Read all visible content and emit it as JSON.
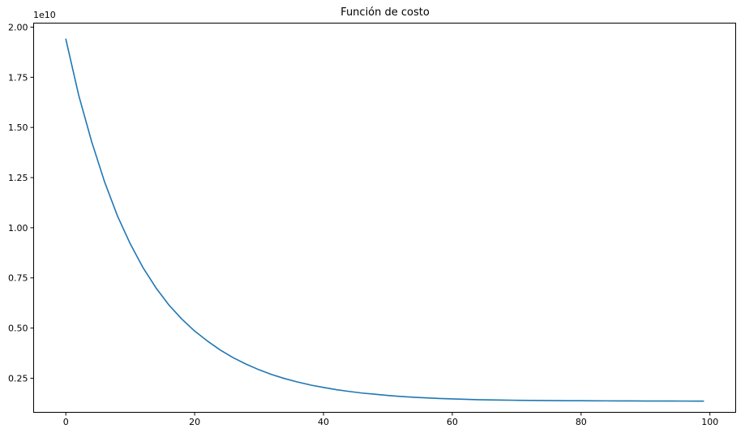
{
  "chart_data": {
    "type": "line",
    "title": "Función de costo",
    "xlabel": "",
    "ylabel": "",
    "offset_label": "1e10",
    "grid": false,
    "xlim": [
      -5,
      104
    ],
    "ylim": [
      0.08,
      2.02
    ],
    "x_ticks": [
      0,
      20,
      40,
      60,
      80,
      100
    ],
    "x_tick_labels": [
      "0",
      "20",
      "40",
      "60",
      "80",
      "100"
    ],
    "y_ticks": [
      0.25,
      0.5,
      0.75,
      1.0,
      1.25,
      1.5,
      1.75,
      2.0
    ],
    "y_tick_labels": [
      "0.25",
      "0.50",
      "0.75",
      "1.00",
      "1.25",
      "1.50",
      "1.75",
      "2.00"
    ],
    "series": [
      {
        "color": "#1f77b4",
        "x": [
          0,
          2,
          4,
          6,
          8,
          10,
          12,
          14,
          16,
          18,
          20,
          22,
          24,
          26,
          28,
          30,
          32,
          34,
          36,
          38,
          40,
          42,
          44,
          46,
          48,
          50,
          52,
          54,
          56,
          58,
          60,
          62,
          64,
          66,
          68,
          70,
          72,
          74,
          76,
          78,
          80,
          82,
          84,
          86,
          88,
          90,
          92,
          94,
          96,
          98,
          99
        ],
        "values": [
          1.94,
          1.66,
          1.43,
          1.23,
          1.06,
          0.92,
          0.8,
          0.7,
          0.615,
          0.545,
          0.485,
          0.435,
          0.39,
          0.352,
          0.32,
          0.292,
          0.268,
          0.248,
          0.231,
          0.216,
          0.204,
          0.193,
          0.184,
          0.176,
          0.17,
          0.164,
          0.159,
          0.155,
          0.152,
          0.149,
          0.147,
          0.145,
          0.143,
          0.142,
          0.141,
          0.14,
          0.1395,
          0.139,
          0.1385,
          0.138,
          0.1377,
          0.1374,
          0.1371,
          0.1369,
          0.1367,
          0.1365,
          0.1363,
          0.1362,
          0.1361,
          0.136,
          0.136
        ]
      }
    ]
  }
}
